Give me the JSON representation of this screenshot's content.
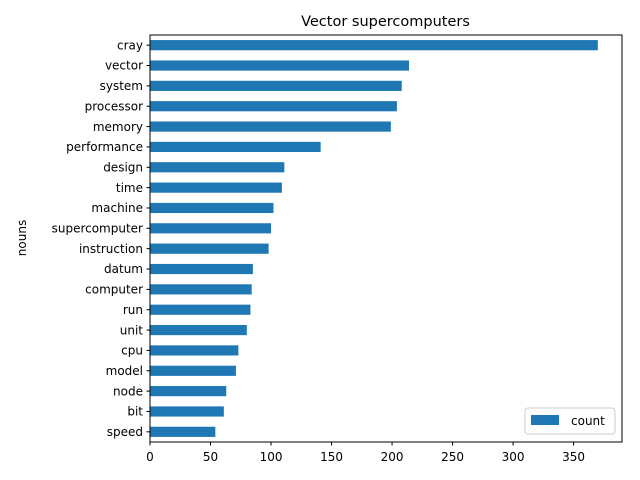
{
  "chart_data": {
    "type": "bar",
    "orientation": "horizontal",
    "title": "Vector supercomputers",
    "xlabel": "",
    "ylabel": "nouns",
    "xlim": [
      0,
      390
    ],
    "xticks": [
      0,
      50,
      100,
      150,
      200,
      250,
      300,
      350
    ],
    "grid": false,
    "legend_position": "lower-right",
    "bar_color": "#1f77b4",
    "categories": [
      "cray",
      "vector",
      "system",
      "processor",
      "memory",
      "performance",
      "design",
      "time",
      "machine",
      "supercomputer",
      "instruction",
      "datum",
      "computer",
      "run",
      "unit",
      "cpu",
      "model",
      "node",
      "bit",
      "speed"
    ],
    "series": [
      {
        "name": "count",
        "values": [
          370,
          214,
          208,
          204,
          199,
          141,
          111,
          109,
          102,
          100,
          98,
          85,
          84,
          83,
          80,
          73,
          71,
          63,
          61,
          54
        ]
      }
    ]
  }
}
